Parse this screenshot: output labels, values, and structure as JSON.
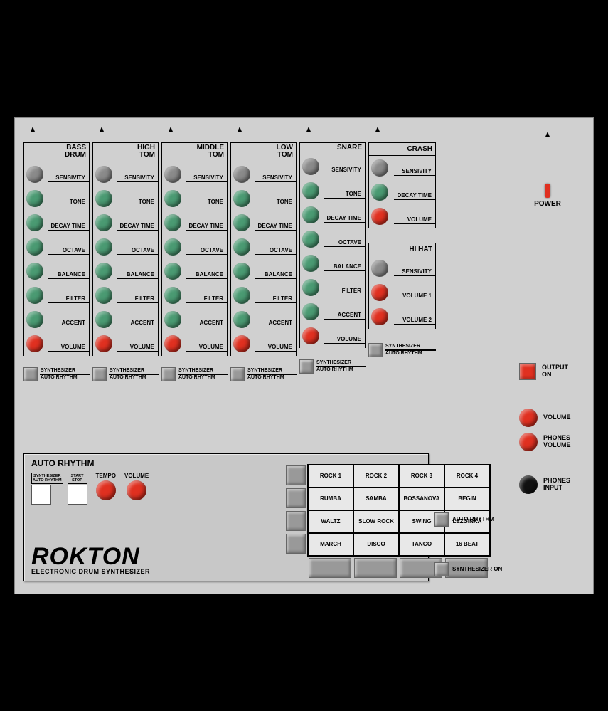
{
  "colors": {
    "grey": "#8a8a8a",
    "green": "#4a9a72",
    "red": "#e03020",
    "black": "#111",
    "switch": "#999"
  },
  "channels": [
    {
      "title": "BASS\nDRUM",
      "knobs": [
        {
          "label": "SENSIVITY",
          "color": "grey"
        },
        {
          "label": "TONE",
          "color": "green"
        },
        {
          "label": "DECAY TIME",
          "color": "green"
        },
        {
          "label": "OCTAVE",
          "color": "green"
        },
        {
          "label": "BALANCE",
          "color": "green"
        },
        {
          "label": "FILTER",
          "color": "green"
        },
        {
          "label": "ACCENT",
          "color": "green"
        },
        {
          "label": "VOLUME",
          "color": "red"
        }
      ]
    },
    {
      "title": "HIGH\nTOM",
      "knobs": [
        {
          "label": "SENSIVITY",
          "color": "grey"
        },
        {
          "label": "TONE",
          "color": "green"
        },
        {
          "label": "DECAY TIME",
          "color": "green"
        },
        {
          "label": "OCTAVE",
          "color": "green"
        },
        {
          "label": "BALANCE",
          "color": "green"
        },
        {
          "label": "FILTER",
          "color": "green"
        },
        {
          "label": "ACCENT",
          "color": "green"
        },
        {
          "label": "VOLUME",
          "color": "red"
        }
      ]
    },
    {
      "title": "MIDDLE\nTOM",
      "knobs": [
        {
          "label": "SENSIVITY",
          "color": "grey"
        },
        {
          "label": "TONE",
          "color": "green"
        },
        {
          "label": "DECAY TIME",
          "color": "green"
        },
        {
          "label": "OCTAVE",
          "color": "green"
        },
        {
          "label": "BALANCE",
          "color": "green"
        },
        {
          "label": "FILTER",
          "color": "green"
        },
        {
          "label": "ACCENT",
          "color": "green"
        },
        {
          "label": "VOLUME",
          "color": "red"
        }
      ]
    },
    {
      "title": "LOW\nTOM",
      "knobs": [
        {
          "label": "SENSIVITY",
          "color": "grey"
        },
        {
          "label": "TONE",
          "color": "green"
        },
        {
          "label": "DECAY TIME",
          "color": "green"
        },
        {
          "label": "OCTAVE",
          "color": "green"
        },
        {
          "label": "BALANCE",
          "color": "green"
        },
        {
          "label": "FILTER",
          "color": "green"
        },
        {
          "label": "ACCENT",
          "color": "green"
        },
        {
          "label": "VOLUME",
          "color": "red"
        }
      ]
    },
    {
      "title": "SNARE",
      "knobs": [
        {
          "label": "SENSIVITY",
          "color": "grey"
        },
        {
          "label": "TONE",
          "color": "green"
        },
        {
          "label": "DECAY TIME",
          "color": "green"
        },
        {
          "label": "OCTAVE",
          "color": "green"
        },
        {
          "label": "BALANCE",
          "color": "green"
        },
        {
          "label": "FILTER",
          "color": "green"
        },
        {
          "label": "ACCENT",
          "color": "green"
        },
        {
          "label": "VOLUME",
          "color": "red"
        }
      ]
    }
  ],
  "crash": {
    "title": "CRASH",
    "knobs": [
      {
        "label": "SENSIVITY",
        "color": "grey"
      },
      {
        "label": "DECAY TIME",
        "color": "green"
      },
      {
        "label": "VOLUME",
        "color": "red"
      }
    ]
  },
  "hihat": {
    "title": "HI HAT",
    "knobs": [
      {
        "label": "SENSIVITY",
        "color": "grey"
      },
      {
        "label": "VOLUME 1",
        "color": "red"
      },
      {
        "label": "VOLUME 2",
        "color": "red"
      }
    ]
  },
  "switch_labels": {
    "top": "SYNTHESIZER",
    "bottom": "AUTO RHYTHM"
  },
  "power": "POWER",
  "side": {
    "output_on": "OUTPUT\nON",
    "volume": "VOLUME",
    "phones_vol": "PHONES\nVOLUME",
    "phones_in": "PHONES\nINPUT"
  },
  "auto_rhythm": {
    "title": "AUTO RHYTHM",
    "btn1": "SYNTHESIZER\nAUTO RHYTHM",
    "btn2": "START\nSTOP",
    "tempo": "TEMPO",
    "volume": "VOLUME",
    "grid": [
      [
        "ROCK 1",
        "ROCK 2",
        "ROCK 3",
        "ROCK 4"
      ],
      [
        "RUMBA",
        "SAMBA",
        "BOSSANOVA",
        "BEGIN"
      ],
      [
        "WALTZ",
        "SLOW ROCK",
        "SWING",
        "LEZGINKA"
      ],
      [
        "MARCH",
        "DISCO",
        "TANGO",
        "16 BEAT"
      ]
    ]
  },
  "extra": {
    "auto_rhythm": "AUTO RHYTHM",
    "synth_on": "SYNTHESIZER ON"
  },
  "brand": {
    "name": "ROKTON",
    "sub": "ELECTRONIC DRUM SYNTHESIZER"
  }
}
